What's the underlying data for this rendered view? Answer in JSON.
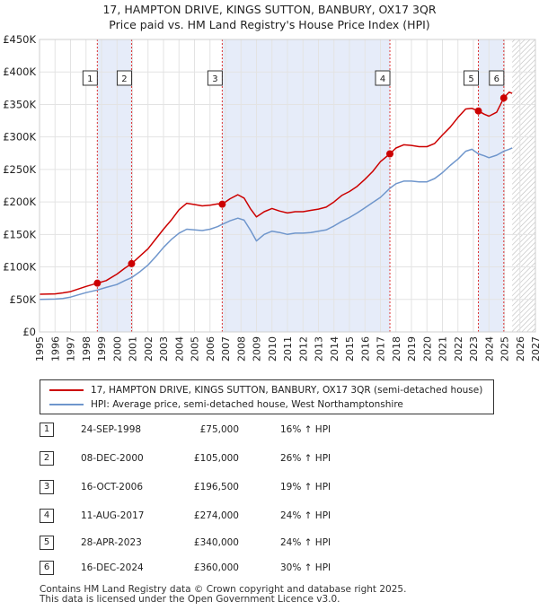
{
  "title_line1": "17, HAMPTON DRIVE, KINGS SUTTON, BANBURY, OX17 3QR",
  "title_line2": "Price paid vs. HM Land Registry's House Price Index (HPI)",
  "chart_data": {
    "type": "line",
    "y_ticks": [
      {
        "value": 0,
        "label": "£0"
      },
      {
        "value": 50000,
        "label": "£50K"
      },
      {
        "value": 100000,
        "label": "£100K"
      },
      {
        "value": 150000,
        "label": "£150K"
      },
      {
        "value": 200000,
        "label": "£200K"
      },
      {
        "value": 250000,
        "label": "£250K"
      },
      {
        "value": 300000,
        "label": "£300K"
      },
      {
        "value": 350000,
        "label": "£350K"
      },
      {
        "value": 400000,
        "label": "£400K"
      },
      {
        "value": 450000,
        "label": "£450K"
      }
    ],
    "ylim": [
      0,
      450000
    ],
    "xlim": [
      1995,
      2027
    ],
    "x_ticks": [
      1995,
      1996,
      1997,
      1998,
      1999,
      2000,
      2001,
      2002,
      2003,
      2004,
      2005,
      2006,
      2007,
      2008,
      2009,
      2010,
      2011,
      2012,
      2013,
      2014,
      2015,
      2016,
      2017,
      2018,
      2019,
      2020,
      2021,
      2022,
      2023,
      2024,
      2025,
      2026,
      2027
    ],
    "shaded_ranges": [
      [
        1998.73,
        2000.94
      ],
      [
        2006.79,
        2017.61
      ],
      [
        2023.32,
        2024.96
      ]
    ],
    "future_hatch_from": 2025.5,
    "series": [
      {
        "name": "17, HAMPTON DRIVE, KINGS SUTTON, BANBURY, OX17 3QR (semi-detached house)",
        "color": "#cc0000",
        "points": [
          [
            1995.0,
            58000
          ],
          [
            1996.0,
            58500
          ],
          [
            1996.5,
            60000
          ],
          [
            1997.0,
            62000
          ],
          [
            1997.5,
            66000
          ],
          [
            1998.0,
            70000
          ],
          [
            1998.73,
            75000
          ],
          [
            1999.3,
            79000
          ],
          [
            2000.0,
            89000
          ],
          [
            2000.5,
            98000
          ],
          [
            2000.94,
            105000
          ],
          [
            2001.5,
            117000
          ],
          [
            2002.0,
            128000
          ],
          [
            2002.5,
            143000
          ],
          [
            2003.0,
            158000
          ],
          [
            2003.5,
            172000
          ],
          [
            2004.0,
            188000
          ],
          [
            2004.5,
            198000
          ],
          [
            2005.0,
            196000
          ],
          [
            2005.5,
            194000
          ],
          [
            2006.0,
            195000
          ],
          [
            2006.5,
            197000
          ],
          [
            2006.79,
            196500
          ],
          [
            2007.3,
            205000
          ],
          [
            2007.8,
            211000
          ],
          [
            2008.2,
            206000
          ],
          [
            2008.6,
            190000
          ],
          [
            2009.0,
            177000
          ],
          [
            2009.5,
            185000
          ],
          [
            2010.0,
            190000
          ],
          [
            2010.5,
            186000
          ],
          [
            2011.0,
            183000
          ],
          [
            2011.5,
            185000
          ],
          [
            2012.0,
            185000
          ],
          [
            2012.5,
            187000
          ],
          [
            2013.0,
            189000
          ],
          [
            2013.5,
            192000
          ],
          [
            2014.0,
            200000
          ],
          [
            2014.5,
            210000
          ],
          [
            2015.0,
            216000
          ],
          [
            2015.5,
            224000
          ],
          [
            2016.0,
            235000
          ],
          [
            2016.5,
            247000
          ],
          [
            2017.0,
            262000
          ],
          [
            2017.61,
            274000
          ],
          [
            2018.0,
            283000
          ],
          [
            2018.5,
            288000
          ],
          [
            2019.0,
            287000
          ],
          [
            2019.5,
            285000
          ],
          [
            2020.0,
            285000
          ],
          [
            2020.5,
            290000
          ],
          [
            2021.0,
            303000
          ],
          [
            2021.5,
            315000
          ],
          [
            2022.0,
            330000
          ],
          [
            2022.5,
            343000
          ],
          [
            2022.9,
            344000
          ],
          [
            2023.32,
            340000
          ],
          [
            2023.7,
            335000
          ],
          [
            2024.0,
            332000
          ],
          [
            2024.5,
            338000
          ],
          [
            2024.96,
            360000
          ],
          [
            2025.3,
            369000
          ],
          [
            2025.5,
            367000
          ]
        ]
      },
      {
        "name": "HPI: Average price, semi-detached house, West Northamptonshire",
        "color": "#6f96cc",
        "points": [
          [
            1995.0,
            50000
          ],
          [
            1996.0,
            50500
          ],
          [
            1996.5,
            51500
          ],
          [
            1997.0,
            53500
          ],
          [
            1997.5,
            57000
          ],
          [
            1998.0,
            60500
          ],
          [
            1998.73,
            64500
          ],
          [
            1999.3,
            68500
          ],
          [
            2000.0,
            73000
          ],
          [
            2000.5,
            79000
          ],
          [
            2000.94,
            83500
          ],
          [
            2001.5,
            93000
          ],
          [
            2002.0,
            103000
          ],
          [
            2002.5,
            116000
          ],
          [
            2003.0,
            130000
          ],
          [
            2003.5,
            142000
          ],
          [
            2004.0,
            152000
          ],
          [
            2004.5,
            158000
          ],
          [
            2005.0,
            157000
          ],
          [
            2005.5,
            156000
          ],
          [
            2006.0,
            158000
          ],
          [
            2006.5,
            162000
          ],
          [
            2006.79,
            165500
          ],
          [
            2007.3,
            171000
          ],
          [
            2007.8,
            175000
          ],
          [
            2008.2,
            172000
          ],
          [
            2008.6,
            157000
          ],
          [
            2009.0,
            140000
          ],
          [
            2009.5,
            150000
          ],
          [
            2010.0,
            155000
          ],
          [
            2010.5,
            153000
          ],
          [
            2011.0,
            150000
          ],
          [
            2011.5,
            152000
          ],
          [
            2012.0,
            152000
          ],
          [
            2012.5,
            153000
          ],
          [
            2013.0,
            155000
          ],
          [
            2013.5,
            157000
          ],
          [
            2014.0,
            163000
          ],
          [
            2014.5,
            170000
          ],
          [
            2015.0,
            176000
          ],
          [
            2015.5,
            183000
          ],
          [
            2016.0,
            191000
          ],
          [
            2016.5,
            199000
          ],
          [
            2017.0,
            207000
          ],
          [
            2017.61,
            221000
          ],
          [
            2018.0,
            228000
          ],
          [
            2018.5,
            232000
          ],
          [
            2019.0,
            232000
          ],
          [
            2019.5,
            231000
          ],
          [
            2020.0,
            231000
          ],
          [
            2020.5,
            236000
          ],
          [
            2021.0,
            245000
          ],
          [
            2021.5,
            256000
          ],
          [
            2022.0,
            266000
          ],
          [
            2022.5,
            278000
          ],
          [
            2022.9,
            281000
          ],
          [
            2023.32,
            274000
          ],
          [
            2023.7,
            271000
          ],
          [
            2024.0,
            268000
          ],
          [
            2024.5,
            272000
          ],
          [
            2024.96,
            278000
          ],
          [
            2025.3,
            281000
          ],
          [
            2025.5,
            283000
          ]
        ]
      }
    ],
    "sale_points": [
      {
        "label": "1",
        "x": 1998.73,
        "y": 75000
      },
      {
        "label": "2",
        "x": 2000.94,
        "y": 105000
      },
      {
        "label": "3",
        "x": 2006.79,
        "y": 196500
      },
      {
        "label": "4",
        "x": 2017.61,
        "y": 274000
      },
      {
        "label": "5",
        "x": 2023.32,
        "y": 340000
      },
      {
        "label": "6",
        "x": 2024.96,
        "y": 360000
      }
    ]
  },
  "legend": {
    "property_label": "17, HAMPTON DRIVE, KINGS SUTTON, BANBURY, OX17 3QR (semi-detached house)",
    "hpi_label": "HPI: Average price, semi-detached house, West Northamptonshire"
  },
  "sales": [
    {
      "num": "1",
      "date": "24-SEP-1998",
      "price": "£75,000",
      "hpi": "16% ↑ HPI"
    },
    {
      "num": "2",
      "date": "08-DEC-2000",
      "price": "£105,000",
      "hpi": "26% ↑ HPI"
    },
    {
      "num": "3",
      "date": "16-OCT-2006",
      "price": "£196,500",
      "hpi": "19% ↑ HPI"
    },
    {
      "num": "4",
      "date": "11-AUG-2017",
      "price": "£274,000",
      "hpi": "24% ↑ HPI"
    },
    {
      "num": "5",
      "date": "28-APR-2023",
      "price": "£340,000",
      "hpi": "24% ↑ HPI"
    },
    {
      "num": "6",
      "date": "16-DEC-2024",
      "price": "£360,000",
      "hpi": "30% ↑ HPI"
    }
  ],
  "footer_line1": "Contains HM Land Registry data © Crown copyright and database right 2025.",
  "footer_line2": "This data is licensed under the Open Government Licence v3.0."
}
